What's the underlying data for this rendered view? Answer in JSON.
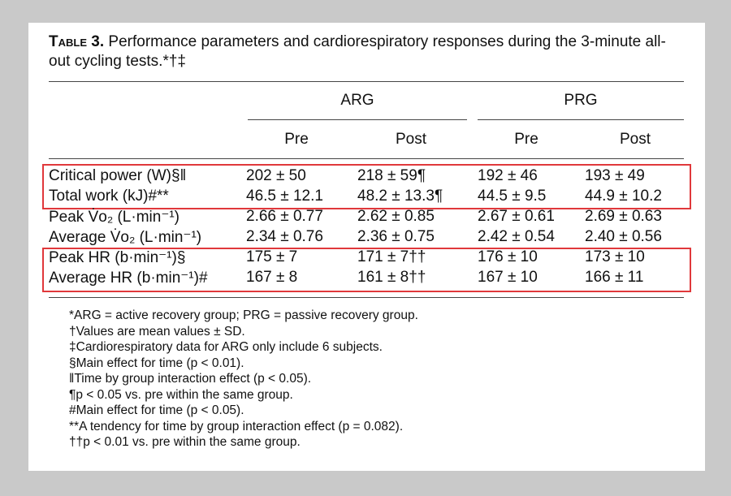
{
  "caption": {
    "label": "Table 3.",
    "text": "Performance parameters and cardiorespiratory responses during the 3-minute all-out cycling tests.*†‡"
  },
  "groups": [
    "ARG",
    "PRG"
  ],
  "subheaders": [
    "Pre",
    "Post",
    "Pre",
    "Post"
  ],
  "rows": [
    [
      "Critical power (W)§‖",
      "202 ± 50",
      "218 ± 59¶",
      "192 ± 46",
      "193 ± 49"
    ],
    [
      "Total work (kJ)#**",
      "46.5 ± 12.1",
      "48.2 ± 13.3¶",
      "44.5 ± 9.5",
      "44.9 ± 10.2"
    ],
    [
      "Peak V̇o₂ (L·min⁻¹)",
      "2.66 ± 0.77",
      "2.62 ± 0.85",
      "2.67 ± 0.61",
      "2.69 ± 0.63"
    ],
    [
      "Average V̇o₂ (L·min⁻¹)",
      "2.34 ± 0.76",
      "2.36 ± 0.75",
      "2.42 ± 0.54",
      "2.40 ± 0.56"
    ],
    [
      "Peak HR (b·min⁻¹)§",
      "175 ± 7",
      "171 ± 7††",
      "176 ± 10",
      "173 ± 10"
    ],
    [
      "Average HR (b·min⁻¹)#",
      "167 ± 8",
      "161 ± 8††",
      "167 ± 10",
      "166 ± 11"
    ]
  ],
  "footnotes": [
    "*ARG = active recovery group; PRG = passive recovery group.",
    "†Values are mean values ± SD.",
    "‡Cardiorespiratory data for ARG only include 6 subjects.",
    "§Main effect for time (p < 0.01).",
    "‖Time by group interaction effect (p < 0.05).",
    "¶p < 0.05 vs. pre within the same group.",
    "#Main effect for time (p < 0.05).",
    "**A tendency for time by group interaction effect (p = 0.082).",
    "††p < 0.01 vs. pre within the same group."
  ]
}
